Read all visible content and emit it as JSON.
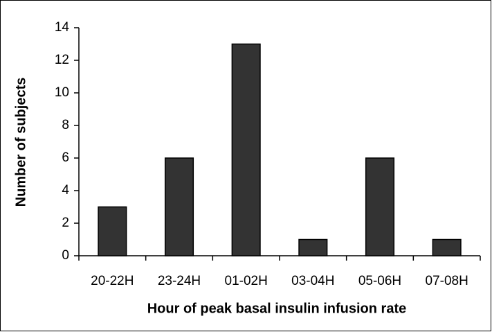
{
  "chart_data": {
    "type": "bar",
    "x_label": "Hour of peak basal insulin infusion rate",
    "y_label": "Number of subjects",
    "categories": [
      "20-22H",
      "23-24H",
      "01-02H",
      "03-04H",
      "05-06H",
      "07-08H"
    ],
    "values": [
      3,
      6,
      13,
      1,
      6,
      1
    ],
    "color": "#333333",
    "ylim": [
      0,
      14
    ],
    "yticks": [
      0,
      2,
      4,
      6,
      8,
      10,
      12,
      14
    ],
    "grid": false
  }
}
